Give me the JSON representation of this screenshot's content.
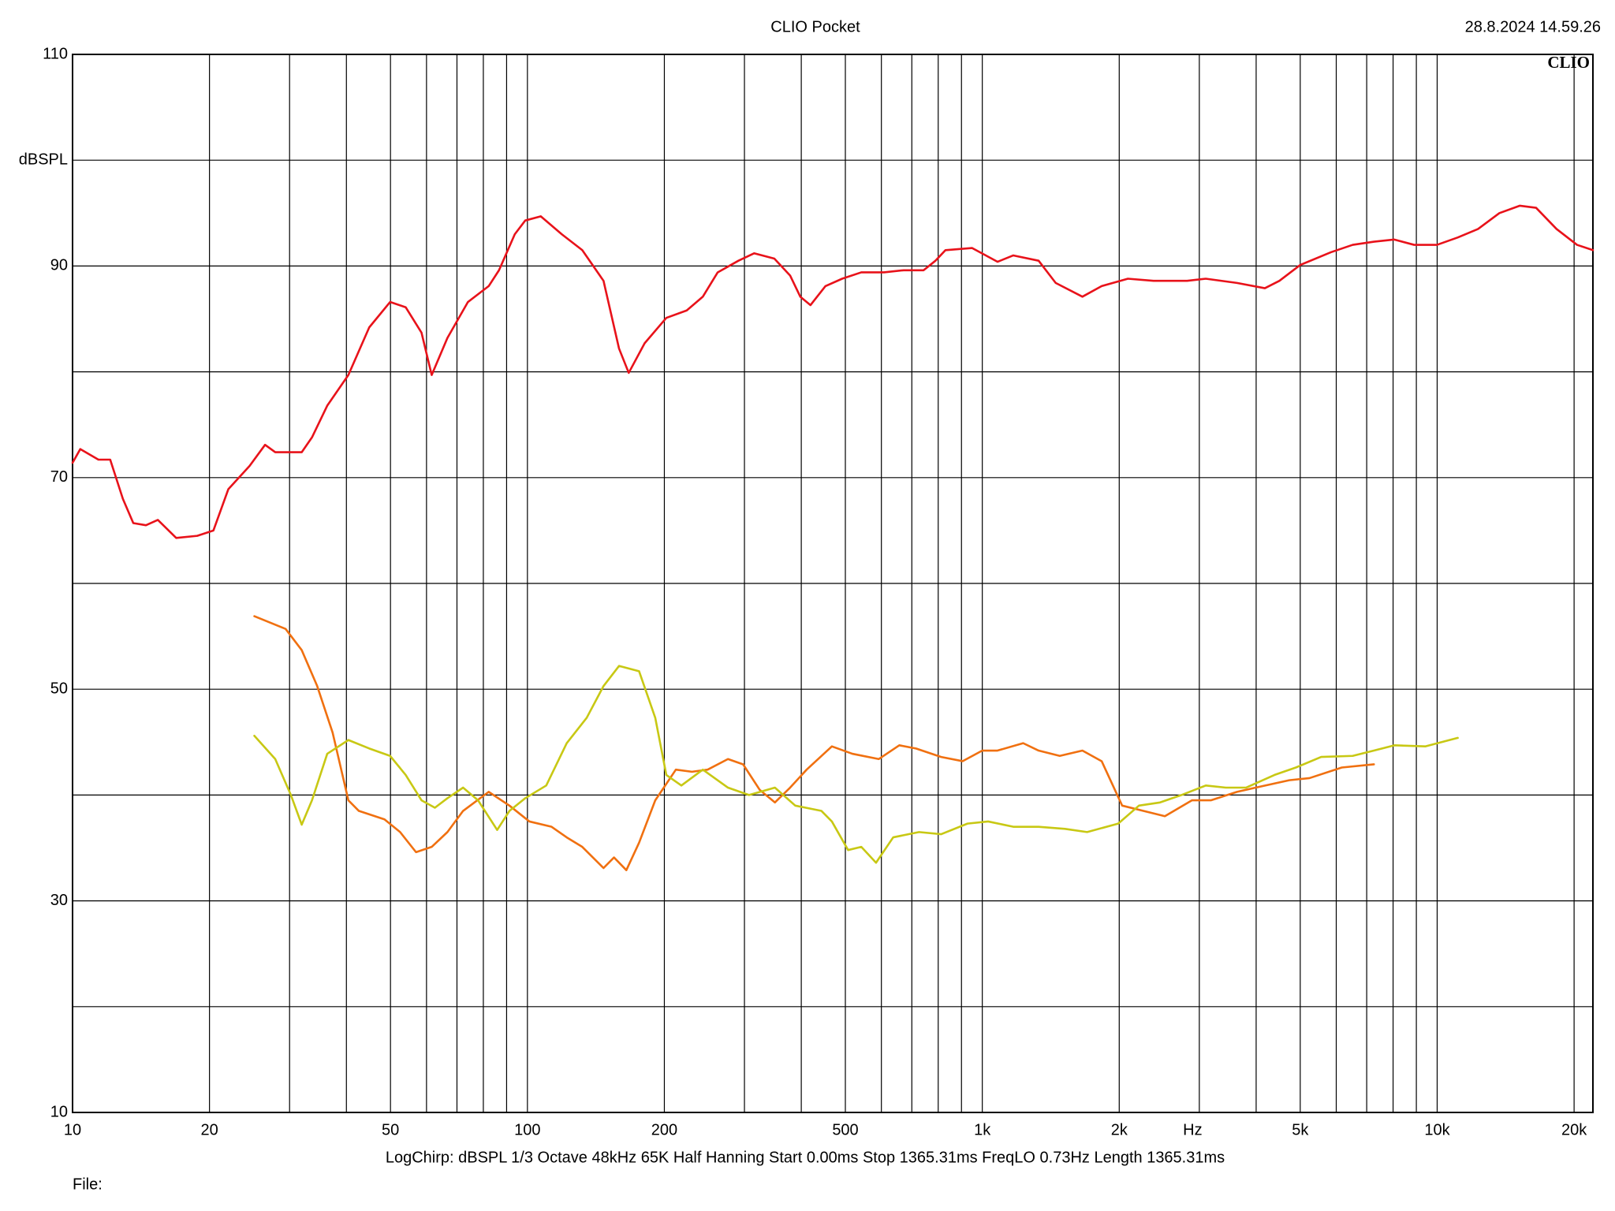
{
  "chart_data": {
    "type": "line",
    "title": "CLIO Pocket",
    "timestamp": "28.8.2024 14.59.26",
    "logo": "CLIO",
    "ylabel": "dBSPL",
    "xlabel": "Hz",
    "info": "LogChirp:  dBSPL   1/3 Octave   48kHz   65K   Half Hanning   Start 0.00ms    Stop 1365.31ms    FreqLO 0.73Hz    Length 1365.31ms",
    "file_label": "File:",
    "xscale": "log",
    "grid": true,
    "xlim": [
      10,
      22000
    ],
    "ylim": [
      10,
      110
    ],
    "xticks": [
      10,
      20,
      50,
      100,
      200,
      500,
      {
        "value": 1000,
        "label": "1k"
      },
      {
        "value": 2000,
        "label": "2k"
      },
      {
        "value": 5000,
        "label": "5k"
      },
      {
        "value": 10000,
        "label": "10k"
      },
      {
        "value": 20000,
        "label": "20k"
      }
    ],
    "x_minor_grid": [
      30,
      40,
      60,
      70,
      80,
      90,
      300,
      400,
      600,
      700,
      800,
      900,
      3000,
      4000,
      6000,
      7000,
      8000,
      9000
    ],
    "yticks": [
      10,
      30,
      50,
      70,
      90,
      110
    ],
    "y_minor_grid": [
      20,
      40,
      60,
      80,
      100
    ],
    "series": [
      {
        "color": "#e8121a",
        "x": [
          10,
          10.4,
          11.4,
          12.1,
          12.9,
          13.6,
          14.5,
          15.4,
          16.9,
          18.8,
          20.4,
          22,
          24.5,
          26.5,
          27.9,
          31.9,
          33.6,
          36.3,
          40.4,
          44.9,
          49.9,
          54,
          58.5,
          61.6,
          66.7,
          74,
          82.2,
          86.6,
          93.8,
          98.9,
          107,
          119,
          132,
          147,
          159,
          167,
          181,
          202,
          224,
          243,
          262,
          291,
          315,
          349,
          378,
          398,
          419,
          452,
          492,
          542,
          608,
          672,
          743,
          789,
          830,
          950,
          1080,
          1170,
          1330,
          1450,
          1660,
          1830,
          2090,
          2380,
          2820,
          3100,
          3630,
          4180,
          4500,
          5000,
          5840,
          6520,
          7260,
          8050,
          8900,
          9990,
          11100,
          12300,
          13700,
          15200,
          16500,
          18300,
          20300,
          22000
        ],
        "values": [
          71.4,
          72.7,
          71.7,
          71.7,
          68,
          65.7,
          65.5,
          66,
          64.3,
          64.5,
          65,
          68.9,
          71.1,
          73.1,
          72.4,
          72.4,
          73.8,
          76.8,
          79.7,
          84.2,
          86.6,
          86.1,
          83.7,
          79.7,
          83.2,
          86.6,
          88.1,
          89.6,
          93,
          94.3,
          94.7,
          93,
          91.5,
          88.6,
          82.2,
          79.9,
          82.7,
          85.1,
          85.8,
          87.1,
          89.4,
          90.5,
          91.2,
          90.7,
          89.1,
          87.1,
          86.3,
          88.1,
          88.8,
          89.4,
          89.4,
          89.6,
          89.6,
          90.5,
          91.5,
          91.7,
          90.4,
          91,
          90.5,
          88.4,
          87.1,
          88.1,
          88.8,
          88.6,
          88.6,
          88.8,
          88.4,
          87.9,
          88.6,
          90.1,
          91.3,
          92,
          92.3,
          92.5,
          92,
          92,
          92.7,
          93.5,
          95,
          95.7,
          95.5,
          93.5,
          92,
          91.5
        ]
      },
      {
        "color": "#f07010",
        "x": [
          25.1,
          29.4,
          31.9,
          34.5,
          37.3,
          40.4,
          42.6,
          48.5,
          52.5,
          56.9,
          61.6,
          66.7,
          72.2,
          82.2,
          91.3,
          101,
          113,
          122,
          132,
          147,
          155,
          165,
          176,
          191,
          212,
          230,
          249,
          276,
          298,
          324,
          350,
          378,
          411,
          467,
          518,
          592,
          657,
          715,
          812,
          905,
          1000,
          1080,
          1230,
          1330,
          1480,
          1660,
          1830,
          2030,
          2260,
          2520,
          2890,
          3180,
          3630,
          3990,
          4730,
          5240,
          6170,
          7260
        ],
        "values": [
          56.9,
          55.7,
          53.7,
          50.3,
          45.9,
          39.5,
          38.5,
          37.7,
          36.5,
          34.6,
          35.1,
          36.5,
          38.5,
          40.3,
          39,
          37.5,
          37,
          36,
          35.1,
          33.1,
          34.1,
          32.9,
          35.5,
          39.5,
          42.4,
          42.2,
          42.4,
          43.4,
          42.9,
          40.5,
          39.3,
          40.7,
          42.4,
          44.6,
          43.9,
          43.4,
          44.7,
          44.4,
          43.6,
          43.2,
          44.2,
          44.2,
          44.9,
          44.2,
          43.7,
          44.2,
          43.2,
          39,
          38.5,
          38,
          39.5,
          39.5,
          40.3,
          40.7,
          41.4,
          41.6,
          42.6,
          42.9
        ]
      },
      {
        "color": "#c8c814",
        "x": [
          25.1,
          27.9,
          30.2,
          31.9,
          33.6,
          36.3,
          40.4,
          44.9,
          49.9,
          54,
          58.5,
          62.6,
          66.7,
          72.2,
          77.9,
          85.8,
          91.3,
          98.9,
          110,
          122,
          135,
          147,
          159,
          176,
          191,
          202,
          218,
          243,
          276,
          307,
          350,
          388,
          443,
          467,
          507,
          542,
          584,
          637,
          726,
          812,
          928,
          1030,
          1170,
          1330,
          1520,
          1700,
          1990,
          2210,
          2460,
          2740,
          3100,
          3430,
          3800,
          4390,
          4890,
          5560,
          6520,
          7260,
          8050,
          9430,
          11100
        ],
        "values": [
          45.6,
          43.4,
          40,
          37.2,
          39.5,
          43.9,
          45.2,
          44.4,
          43.7,
          41.9,
          39.5,
          38.8,
          39.7,
          40.7,
          39.5,
          36.7,
          38.5,
          39.7,
          40.9,
          44.9,
          47.3,
          50.3,
          52.2,
          51.7,
          47.3,
          41.9,
          40.9,
          42.4,
          40.7,
          40,
          40.7,
          39,
          38.5,
          37.5,
          34.8,
          35.1,
          33.6,
          36,
          36.5,
          36.3,
          37.3,
          37.5,
          37,
          37,
          36.8,
          36.5,
          37.3,
          39,
          39.3,
          40,
          40.9,
          40.7,
          40.7,
          41.9,
          42.6,
          43.6,
          43.7,
          44.2,
          44.7,
          44.6,
          45.4
        ]
      }
    ]
  }
}
